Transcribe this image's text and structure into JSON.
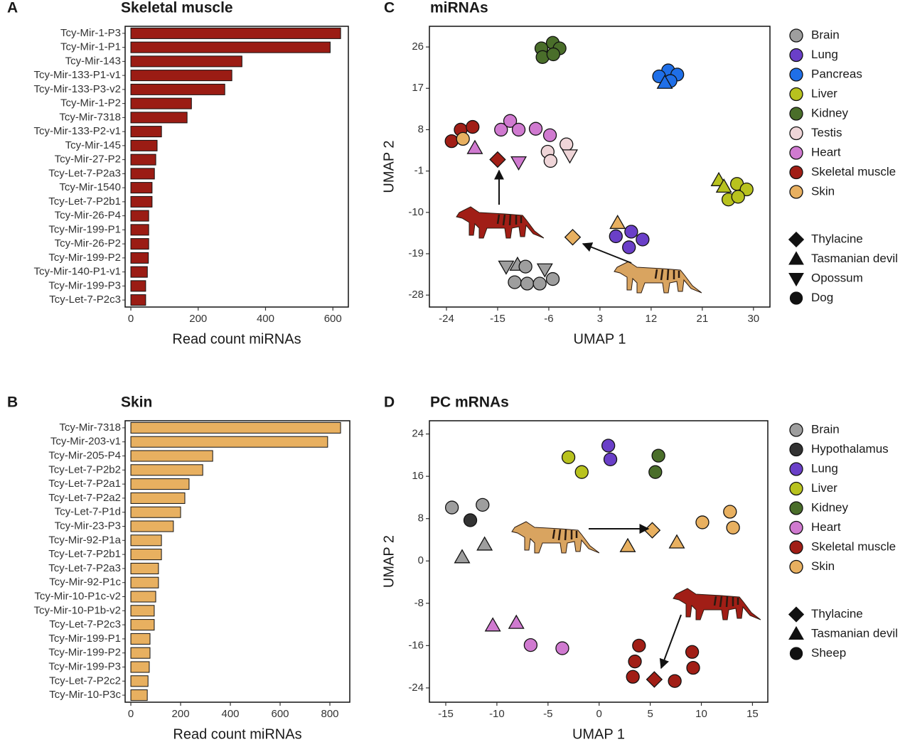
{
  "chart_data": [
    {
      "type": "bar",
      "horizontal": true,
      "panel_label": "A",
      "title": "Skeletal muscle",
      "xlabel": "Read count miRNAs",
      "color": "#9b1c14",
      "categories": [
        "Tcy-Mir-1-P3",
        "Tcy-Mir-1-P1",
        "Tcy-Mir-143",
        "Tcy-Mir-133-P1-v1",
        "Tcy-Mir-133-P3-v2",
        "Tcy-Mir-1-P2",
        "Tcy-Mir-7318",
        "Tcy-Mir-133-P2-v1",
        "Tcy-Mir-145",
        "Tcy-Mir-27-P2",
        "Tcy-Let-7-P2a3",
        "Tcy-Mir-1540",
        "Tcy-Let-7-P2b1",
        "Tcy-Mir-26-P4",
        "Tcy-Mir-199-P1",
        "Tcy-Mir-26-P2",
        "Tcy-Mir-199-P2",
        "Tcy-Mir-140-P1-v1",
        "Tcy-Mir-199-P3",
        "Tcy-Let-7-P2c3"
      ],
      "values": [
        623,
        592,
        330,
        300,
        279,
        180,
        167,
        91,
        78,
        74,
        70,
        63,
        63,
        53,
        53,
        53,
        52,
        49,
        44,
        44
      ],
      "xlim": [
        -17,
        646
      ],
      "xticks": [
        0,
        200,
        400,
        600
      ]
    },
    {
      "type": "bar",
      "horizontal": true,
      "panel_label": "B",
      "title": "Skin",
      "xlabel": "Read count miRNAs",
      "color": "#e8b060",
      "categories": [
        "Tcy-Mir-7318",
        "Tcy-Mir-203-v1",
        "Tcy-Mir-205-P4",
        "Tcy-Let-7-P2b2",
        "Tcy-Let-7-P2a1",
        "Tcy-Let-7-P2a2",
        "Tcy-Let-7-P1d",
        "Tcy-Mir-23-P3",
        "Tcy-Mir-92-P1a",
        "Tcy-Let-7-P2b1",
        "Tcy-Let-7-P2a3",
        "Tcy-Mir-92-P1c",
        "Tcy-Mir-10-P1c-v2",
        "Tcy-Mir-10-P1b-v2",
        "Tcy-Let-7-P2c3",
        "Tcy-Mir-199-P1",
        "Tcy-Mir-199-P2",
        "Tcy-Mir-199-P3",
        "Tcy-Let-7-P2c2",
        "Tcy-Mir-10-P3c"
      ],
      "values": [
        843,
        791,
        329,
        289,
        234,
        217,
        200,
        171,
        123,
        123,
        111,
        111,
        100,
        94,
        94,
        77,
        77,
        74,
        69,
        66
      ],
      "xlim": [
        -23,
        880
      ],
      "xticks": [
        0,
        200,
        400,
        600,
        800
      ]
    },
    {
      "type": "scatter",
      "panel_label": "C",
      "title": "miRNAs",
      "xlabel": "UMAP 1",
      "ylabel": "UMAP 2",
      "xlim": [
        -27,
        32.9
      ],
      "xticks": [
        -24,
        -15,
        -6,
        3,
        12,
        21,
        30
      ],
      "ylim": [
        -30.6,
        30.5
      ],
      "yticks": [
        26,
        17,
        8,
        -1,
        -10,
        -19,
        -28
      ],
      "series": [
        {
          "name": "Brain",
          "color": "#9e9e9e",
          "x": [
            -13.5,
            -11.5,
            -10.1,
            -6.7,
            -12.0,
            -9.8,
            -7.6,
            -5.3
          ],
          "values": [
            -21.8,
            -21.4,
            -21.8,
            -22.4,
            -25.2,
            -25.5,
            -25.5,
            -24.5
          ],
          "markers": [
            "triangle-down",
            "triangle-up",
            "circle",
            "triangle-down",
            "circle",
            "circle",
            "circle",
            "circle"
          ]
        },
        {
          "name": "Lung",
          "color": "#6a3fc8",
          "x": [
            5.8,
            8.5,
            10.5,
            8.1
          ],
          "values": [
            -15.2,
            -14.2,
            -15.9,
            -17.6
          ],
          "markers": [
            "circle",
            "circle",
            "circle",
            "circle"
          ]
        },
        {
          "name": "Pancreas",
          "color": "#1f6fe8",
          "x": [
            15.0,
            13.4,
            16.6,
            15.4,
            14.4
          ],
          "values": [
            20.9,
            19.6,
            20.0,
            18.6,
            18.2
          ],
          "markers": [
            "circle",
            "circle",
            "circle",
            "circle",
            "triangle-up"
          ]
        },
        {
          "name": "Liver",
          "color": "#b8c21e",
          "x": [
            23.9,
            24.8,
            27.1,
            28.8,
            25.6,
            27.3
          ],
          "values": [
            -3.0,
            -4.4,
            -3.8,
            -5.0,
            -7.2,
            -6.6
          ],
          "markers": [
            "triangle-up",
            "triangle-up",
            "circle",
            "circle",
            "circle",
            "circle"
          ]
        },
        {
          "name": "Kidney",
          "color": "#4a6e2a",
          "x": [
            -5.3,
            -7.3,
            -4.1,
            -7.1,
            -5.2
          ],
          "values": [
            26.9,
            25.7,
            25.7,
            23.8,
            24.4
          ],
          "markers": [
            "circle",
            "circle",
            "circle",
            "circle",
            "circle"
          ]
        },
        {
          "name": "Testis",
          "color": "#efd5d8",
          "x": [
            -6.2,
            -5.7,
            -2.9,
            -2.3
          ],
          "values": [
            3.2,
            1.2,
            4.8,
            2.4
          ],
          "markers": [
            "circle",
            "circle",
            "circle",
            "triangle-down"
          ]
        },
        {
          "name": "Heart",
          "color": "#d07ad0",
          "x": [
            -14.4,
            -12.8,
            -11.3,
            -8.3,
            -5.8,
            -19.0,
            -11.3
          ],
          "values": [
            8.0,
            9.9,
            8.0,
            8.2,
            6.8,
            4.0,
            0.9
          ],
          "markers": [
            "circle",
            "circle",
            "circle",
            "circle",
            "circle",
            "triangle-up",
            "triangle-down"
          ]
        },
        {
          "name": "Skeletal muscle",
          "color": "#a11e16",
          "x": [
            -23.1,
            -21.5,
            -19.4,
            -15.0
          ],
          "values": [
            5.5,
            8.0,
            8.6,
            1.5
          ],
          "markers": [
            "circle",
            "circle",
            "circle",
            "diamond"
          ]
        },
        {
          "name": "Skin",
          "color": "#e8b060",
          "x": [
            -21.1,
            6.1,
            -1.8
          ],
          "values": [
            6.0,
            -12.3,
            -15.4
          ],
          "markers": [
            "circle",
            "triangle-up",
            "diamond"
          ]
        }
      ],
      "marker_legend": [
        {
          "name": "Thylacine",
          "marker": "diamond"
        },
        {
          "name": "Tasmanian devil",
          "marker": "triangle-up"
        },
        {
          "name": "Opossum",
          "marker": "triangle-down"
        },
        {
          "name": "Dog",
          "marker": "circle"
        }
      ]
    },
    {
      "type": "scatter",
      "panel_label": "D",
      "title": "PC mRNAs",
      "xlabel": "UMAP 1",
      "ylabel": "UMAP 2",
      "xlim": [
        -16.6,
        16.5
      ],
      "xticks": [
        -15,
        -10,
        -5,
        0,
        5,
        10,
        15
      ],
      "ylim": [
        -26.7,
        26.5
      ],
      "yticks": [
        24,
        16,
        8,
        0,
        -8,
        -16,
        -24
      ],
      "series": [
        {
          "name": "Brain",
          "color": "#9e9e9e",
          "x": [
            -14.4,
            -11.4,
            -13.4,
            -11.2
          ],
          "values": [
            10.1,
            10.6,
            0.7,
            3.1
          ],
          "markers": [
            "circle",
            "circle",
            "triangle-up",
            "triangle-up"
          ]
        },
        {
          "name": "Hypothalamus",
          "color": "#333333",
          "x": [
            -12.6
          ],
          "values": [
            7.7
          ],
          "markers": [
            "circle"
          ]
        },
        {
          "name": "Lung",
          "color": "#6a3fc8",
          "x": [
            0.9,
            1.1
          ],
          "values": [
            21.8,
            19.2
          ],
          "markers": [
            "circle",
            "circle"
          ]
        },
        {
          "name": "Liver",
          "color": "#b8c21e",
          "x": [
            -3.0,
            -1.7
          ],
          "values": [
            19.6,
            16.8
          ],
          "markers": [
            "circle",
            "circle"
          ]
        },
        {
          "name": "Kidney",
          "color": "#4a6e2a",
          "x": [
            5.8,
            5.5
          ],
          "values": [
            19.9,
            16.8
          ],
          "markers": [
            "circle",
            "circle"
          ]
        },
        {
          "name": "Heart",
          "color": "#d07ad0",
          "x": [
            -10.4,
            -8.1,
            -6.7,
            -3.6
          ],
          "values": [
            -12.2,
            -11.7,
            -15.9,
            -16.5
          ],
          "markers": [
            "triangle-up",
            "triangle-up",
            "circle",
            "circle"
          ]
        },
        {
          "name": "Skeletal muscle",
          "color": "#a11e16",
          "x": [
            3.9,
            3.5,
            3.3,
            9.1,
            9.2,
            7.4,
            5.4
          ],
          "values": [
            -16.0,
            -19.0,
            -21.9,
            -17.2,
            -20.2,
            -22.7,
            -22.4
          ],
          "markers": [
            "circle",
            "circle",
            "circle",
            "circle",
            "circle",
            "circle",
            "diamond"
          ]
        },
        {
          "name": "Skin",
          "color": "#e8b060",
          "x": [
            10.1,
            12.8,
            13.1,
            2.8,
            7.6,
            5.2
          ],
          "values": [
            7.3,
            9.3,
            6.3,
            2.8,
            3.5,
            5.8
          ],
          "markers": [
            "circle",
            "circle",
            "circle",
            "triangle-up",
            "triangle-up",
            "diamond"
          ]
        }
      ],
      "marker_legend": [
        {
          "name": "Thylacine",
          "marker": "diamond"
        },
        {
          "name": "Tasmanian devil",
          "marker": "triangle-up"
        },
        {
          "name": "Sheep",
          "marker": "circle"
        }
      ]
    }
  ]
}
